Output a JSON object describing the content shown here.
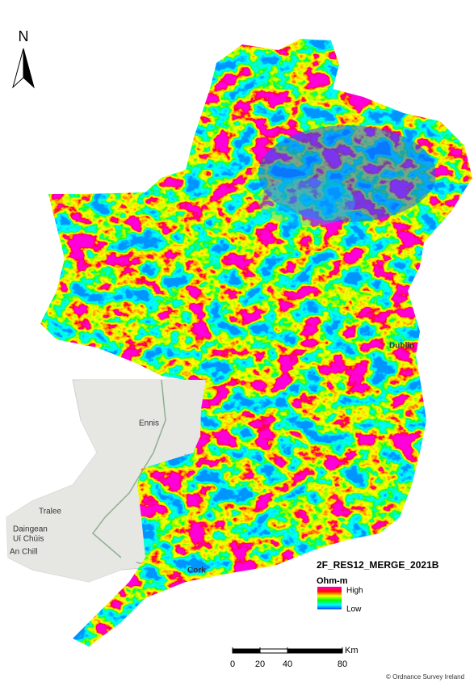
{
  "north": "N",
  "places": [
    {
      "label": "Dublin"
    },
    {
      "label": "Ennis"
    },
    {
      "label": "Tralee"
    },
    {
      "label": "Daingean"
    },
    {
      "label": "Uí Chúis"
    },
    {
      "label": "An Chill"
    },
    {
      "label": "Cork"
    }
  ],
  "legend": {
    "title": "2F_RES12_MERGE_2021B",
    "unit": "Ohm-m",
    "high": "High",
    "low": "Low"
  },
  "scale_bar": {
    "ticks": [
      0,
      20,
      40,
      80
    ],
    "unit": "Km"
  },
  "credit": "© Ordnance Survey Ireland"
}
